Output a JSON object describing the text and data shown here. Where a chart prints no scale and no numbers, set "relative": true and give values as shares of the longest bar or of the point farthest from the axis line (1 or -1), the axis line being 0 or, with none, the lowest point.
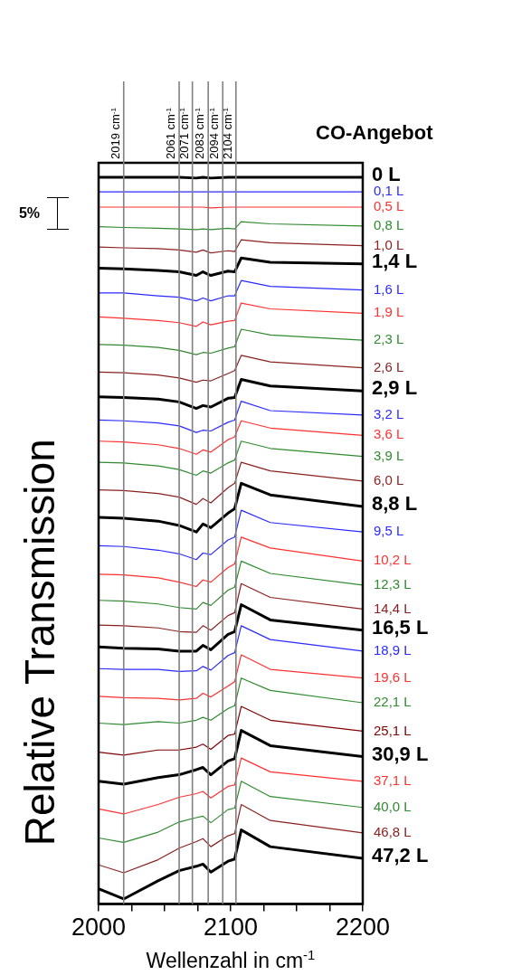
{
  "chart_data": {
    "type": "line",
    "relative": true,
    "xlabel": "Wellenzahl in cm$^{-1}$",
    "ylabel": "Relative Transmission",
    "legend_title": "CO-Angebot",
    "annotations": [
      "5%"
    ],
    "marker": "none",
    "line_style": "solid",
    "grid": false,
    "xlim": [
      2000,
      2200
    ],
    "xticks": [
      2000,
      {
        "value": 2025,
        "label": null
      },
      {
        "value": 2050,
        "label": null
      },
      {
        "value": 2075,
        "label": null
      },
      2100,
      {
        "value": 2125,
        "label": null
      },
      {
        "value": 2150,
        "label": null
      },
      {
        "value": 2175,
        "label": null
      },
      2200
    ],
    "x": [
      2000,
      2019,
      2045,
      2061,
      2074,
      2079,
      2085,
      2098,
      2103,
      2108,
      2130,
      2200
    ],
    "ref_lines": [
      {
        "axis": "x",
        "value": 2019,
        "label": "2019 cm$^{-1}$",
        "color": "#808080"
      },
      {
        "axis": "x",
        "value": 2061,
        "label": "2061 cm$^{-1}$",
        "color": "#808080"
      },
      {
        "axis": "x",
        "value": 2071,
        "label": "2071 cm$^{-1}$",
        "color": "#808080"
      },
      {
        "axis": "x",
        "value": 2083,
        "label": "2083 cm$^{-1}$",
        "color": "#808080"
      },
      {
        "axis": "x",
        "value": 2094,
        "label": "2094 cm$^{-1}$",
        "color": "#808080"
      },
      {
        "axis": "x",
        "value": 2104,
        "label": "2104 cm$^{-1}$",
        "color": "#808080"
      }
    ],
    "series": [
      {
        "name": "0 L",
        "color": "#000000",
        "values": [
          1,
          1,
          1,
          1,
          0.999,
          1,
          0.999,
          1,
          1,
          1,
          1,
          1
        ]
      },
      {
        "name": "0,1 L",
        "color": "#2a2aff",
        "values": [
          0.98,
          0.98,
          0.98,
          0.98,
          0.98,
          0.98,
          0.98,
          0.98,
          0.98,
          0.98,
          0.98,
          0.98
        ]
      },
      {
        "name": "0,5 L",
        "color": "#ff3030",
        "values": [
          0.959,
          0.959,
          0.959,
          0.959,
          0.959,
          0.959,
          0.958,
          0.959,
          0.959,
          0.959,
          0.959,
          0.959
        ]
      },
      {
        "name": "0,8 L",
        "color": "#2e8b2e",
        "values": [
          0.932,
          0.931,
          0.93,
          0.929,
          0.928,
          0.929,
          0.928,
          0.93,
          0.929,
          0.939,
          0.936,
          0.933
        ]
      },
      {
        "name": "1,0 L",
        "color": "#8b2020",
        "values": [
          0.904,
          0.903,
          0.902,
          0.9,
          0.897,
          0.9,
          0.896,
          0.899,
          0.898,
          0.914,
          0.91,
          0.906
        ]
      },
      {
        "name": "1,4 L",
        "color": "#000000",
        "values": [
          0.875,
          0.874,
          0.872,
          0.87,
          0.865,
          0.87,
          0.865,
          0.871,
          0.87,
          0.889,
          0.883,
          0.881
        ]
      },
      {
        "name": "1,6 L",
        "color": "#2a2aff",
        "values": [
          0.841,
          0.841,
          0.837,
          0.835,
          0.83,
          0.834,
          0.83,
          0.837,
          0.837,
          0.858,
          0.85,
          0.845
        ]
      },
      {
        "name": "1,9 L",
        "color": "#ff3030",
        "values": [
          0.808,
          0.806,
          0.803,
          0.8,
          0.795,
          0.801,
          0.797,
          0.802,
          0.803,
          0.827,
          0.819,
          0.813
        ]
      },
      {
        "name": "2,3 L",
        "color": "#2e8b2e",
        "values": [
          0.77,
          0.769,
          0.766,
          0.762,
          0.756,
          0.759,
          0.758,
          0.765,
          0.767,
          0.791,
          0.783,
          0.776
        ]
      },
      {
        "name": "2,6 L",
        "color": "#8b2020",
        "values": [
          0.732,
          0.731,
          0.728,
          0.724,
          0.718,
          0.721,
          0.72,
          0.73,
          0.734,
          0.755,
          0.746,
          0.738
        ]
      },
      {
        "name": "2,9 L",
        "color": "#000000",
        "values": [
          0.698,
          0.697,
          0.695,
          0.691,
          0.682,
          0.686,
          0.684,
          0.696,
          0.697,
          0.722,
          0.713,
          0.706
        ]
      },
      {
        "name": "3,2 L",
        "color": "#2a2aff",
        "values": [
          0.666,
          0.665,
          0.662,
          0.658,
          0.649,
          0.652,
          0.651,
          0.663,
          0.666,
          0.692,
          0.679,
          0.673
        ]
      },
      {
        "name": "3,6 L",
        "color": "#ff3030",
        "values": [
          0.637,
          0.636,
          0.632,
          0.627,
          0.619,
          0.625,
          0.622,
          0.639,
          0.643,
          0.665,
          0.655,
          0.645
        ]
      },
      {
        "name": "3,9 L",
        "color": "#2e8b2e",
        "values": [
          0.608,
          0.607,
          0.603,
          0.598,
          0.59,
          0.596,
          0.593,
          0.607,
          0.611,
          0.637,
          0.627,
          0.616
        ]
      },
      {
        "name": "6,0 L",
        "color": "#8b2020",
        "values": [
          0.57,
          0.569,
          0.565,
          0.56,
          0.55,
          0.558,
          0.552,
          0.573,
          0.579,
          0.608,
          0.596,
          0.582
        ]
      },
      {
        "name": "8,8 L",
        "color": "#000000",
        "values": [
          0.532,
          0.531,
          0.527,
          0.521,
          0.512,
          0.523,
          0.518,
          0.538,
          0.544,
          0.579,
          0.563,
          0.547
        ]
      },
      {
        "name": "9,5 L",
        "color": "#2a2aff",
        "values": [
          0.493,
          0.492,
          0.487,
          0.482,
          0.474,
          0.483,
          0.481,
          0.501,
          0.505,
          0.542,
          0.525,
          0.512
        ]
      },
      {
        "name": "10,2 L",
        "color": "#ff3030",
        "values": [
          0.454,
          0.453,
          0.449,
          0.443,
          0.437,
          0.446,
          0.443,
          0.463,
          0.468,
          0.505,
          0.49,
          0.472
        ]
      },
      {
        "name": "12,3 L",
        "color": "#2e8b2e",
        "values": [
          0.418,
          0.417,
          0.413,
          0.408,
          0.406,
          0.415,
          0.411,
          0.432,
          0.436,
          0.472,
          0.455,
          0.439
        ]
      },
      {
        "name": "14,4 L",
        "color": "#8b2020",
        "values": [
          0.384,
          0.383,
          0.38,
          0.375,
          0.374,
          0.383,
          0.377,
          0.397,
          0.401,
          0.441,
          0.422,
          0.406
        ]
      },
      {
        "name": "16,5 L",
        "color": "#000000",
        "values": [
          0.354,
          0.352,
          0.351,
          0.348,
          0.348,
          0.356,
          0.35,
          0.371,
          0.375,
          0.412,
          0.391,
          0.377
        ]
      },
      {
        "name": "18,9 L",
        "color": "#2a2aff",
        "values": [
          0.324,
          0.323,
          0.323,
          0.32,
          0.321,
          0.327,
          0.322,
          0.342,
          0.346,
          0.383,
          0.364,
          0.348
        ]
      },
      {
        "name": "19,6 L",
        "color": "#ff3030",
        "values": [
          0.286,
          0.284,
          0.283,
          0.281,
          0.283,
          0.29,
          0.285,
          0.3,
          0.306,
          0.343,
          0.323,
          0.311
        ]
      },
      {
        "name": "22,1 L",
        "color": "#2e8b2e",
        "values": [
          0.249,
          0.247,
          0.251,
          0.249,
          0.253,
          0.257,
          0.253,
          0.269,
          0.273,
          0.311,
          0.294,
          0.277
        ]
      },
      {
        "name": "25,1 L",
        "color": "#800000",
        "values": [
          0.209,
          0.205,
          0.212,
          0.212,
          0.216,
          0.22,
          0.213,
          0.232,
          0.234,
          0.272,
          0.253,
          0.238
        ]
      },
      {
        "name": "30,9 L",
        "color": "#000000",
        "values": [
          0.169,
          0.165,
          0.174,
          0.178,
          0.185,
          0.188,
          0.178,
          0.197,
          0.2,
          0.239,
          0.218,
          0.203
        ]
      },
      {
        "name": "37,1 L",
        "color": "#ff3030",
        "values": [
          0.131,
          0.124,
          0.137,
          0.147,
          0.152,
          0.155,
          0.146,
          0.162,
          0.164,
          0.201,
          0.182,
          0.169
        ]
      },
      {
        "name": "40,0 L",
        "color": "#2e8b2e",
        "values": [
          0.091,
          0.085,
          0.099,
          0.113,
          0.119,
          0.121,
          0.112,
          0.13,
          0.132,
          0.169,
          0.148,
          0.133
        ]
      },
      {
        "name": "46,8 L",
        "color": "#8b2020",
        "values": [
          0.054,
          0.043,
          0.061,
          0.077,
          0.086,
          0.09,
          0.079,
          0.094,
          0.097,
          0.137,
          0.115,
          0.098
        ]
      },
      {
        "name": "47,2 L",
        "color": "#000000",
        "values": [
          0.021,
          0.007,
          0.032,
          0.046,
          0.052,
          0.055,
          0.044,
          0.059,
          0.062,
          0.102,
          0.079,
          0.063
        ]
      }
    ]
  }
}
